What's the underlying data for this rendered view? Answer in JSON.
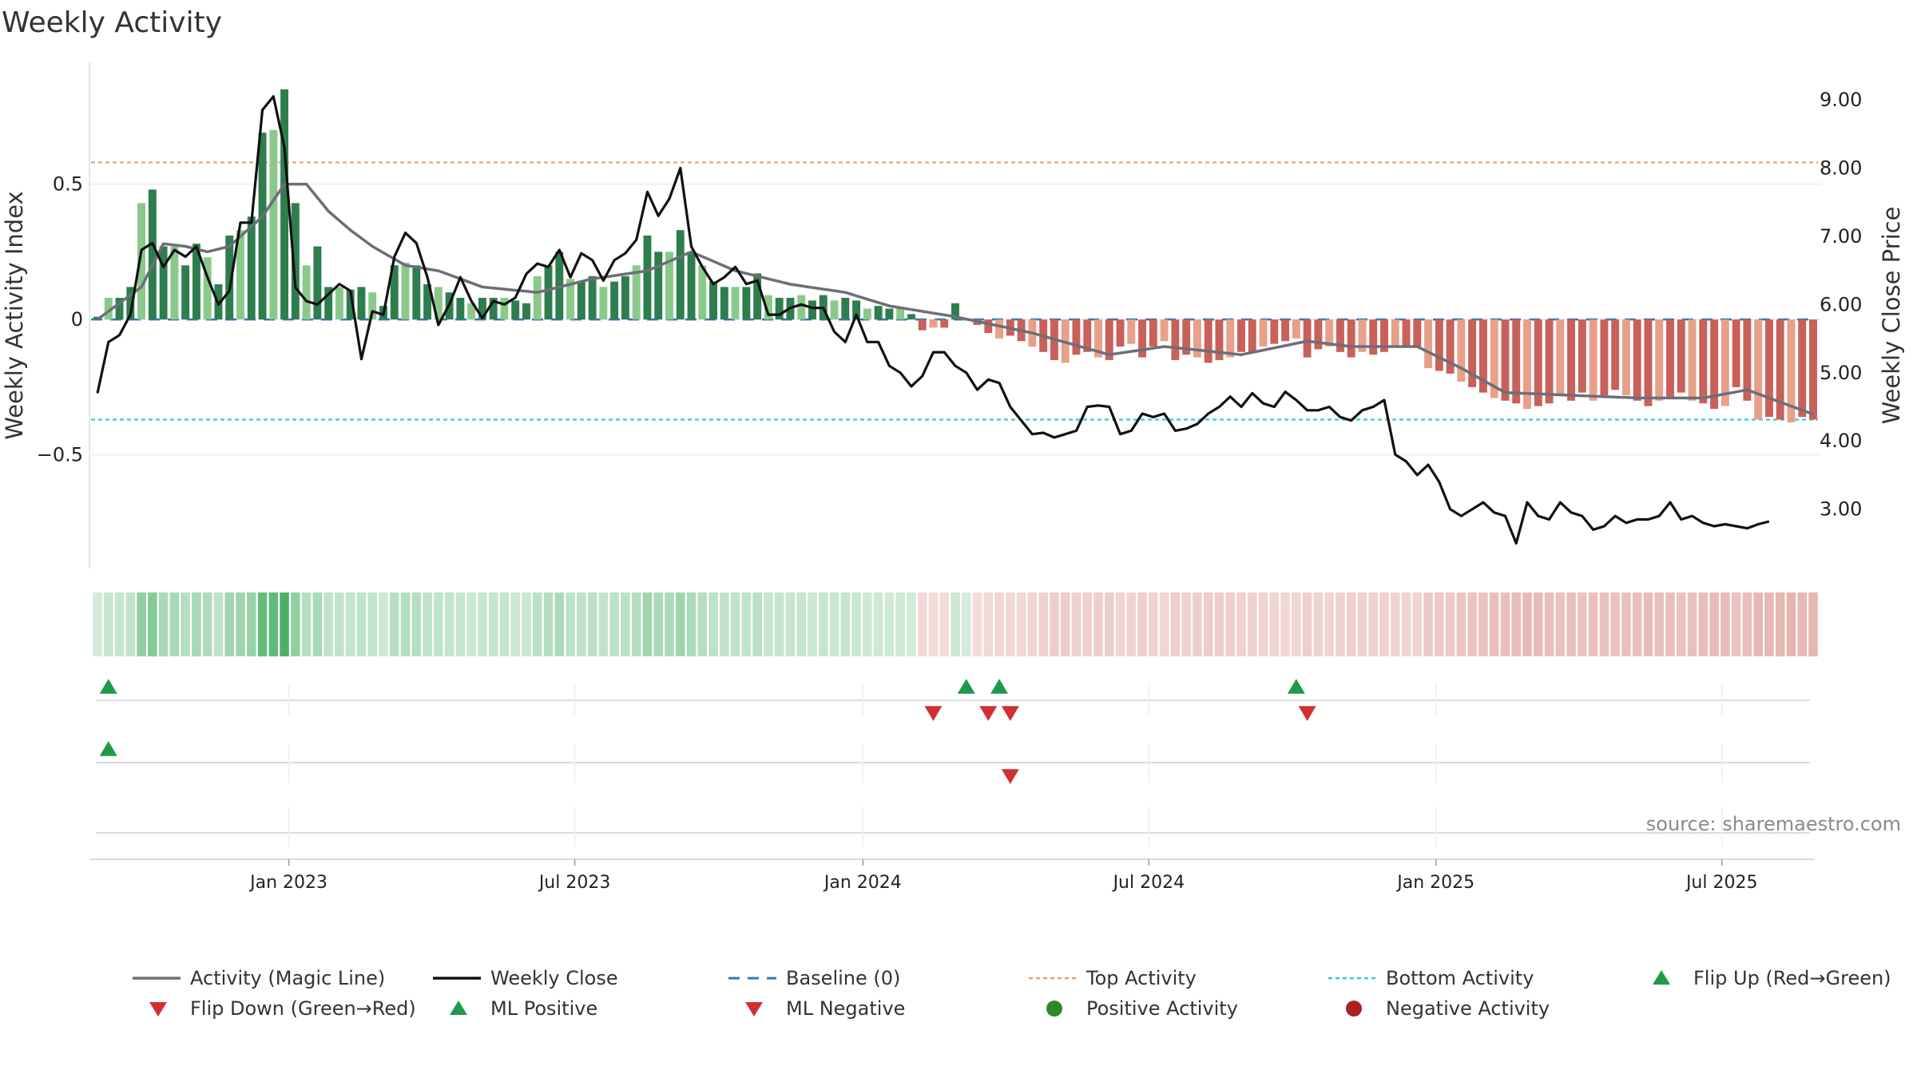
{
  "title": "Weekly Activity",
  "source": "source: sharemaestro.com",
  "colors": {
    "green_strong": "#2e7d4f",
    "green_light": "#8bc98a",
    "red_strong": "#c9605a",
    "red_light": "#e8a08a",
    "magic_line": "#6e6e78",
    "close_line": "#111111",
    "baseline": "#2b7bba",
    "top_line": "#e6a36a",
    "bottom_line": "#33cccc",
    "marker_up": "#1f9a4a",
    "marker_down": "#d13030",
    "pos_dot": "#2a8a2a",
    "neg_dot": "#aa2222"
  },
  "chart_data": {
    "type": "bar",
    "title": "Weekly Activity",
    "ylabel_left": "Weekly Activity Index",
    "ylabel_right": "Weekly Close Price",
    "y_left_range": [
      -0.92,
      0.95
    ],
    "y_left_ticks": [
      "0.5",
      "0",
      "−0.5"
    ],
    "y_left_tick_values": [
      0.5,
      0,
      -0.5
    ],
    "y_right_range": [
      2.13,
      9.55
    ],
    "y_right_ticks": [
      "9.00",
      "8.00",
      "7.00",
      "6.00",
      "5.00",
      "4.00",
      "3.00"
    ],
    "y_right_tick_values": [
      9,
      8,
      7,
      6,
      5,
      4,
      3
    ],
    "x_ticks": [
      "Jan 2023",
      "Jul 2023",
      "Jan 2024",
      "Jul 2024",
      "Jan 2025",
      "Jul 2025"
    ],
    "x_tick_weeks": [
      17.4,
      43.4,
      69.6,
      95.6,
      121.7,
      147.7
    ],
    "week_count": 157,
    "top_activity": 0.58,
    "bottom_activity": -0.37,
    "baseline": 0,
    "activity_anchors": [
      [
        0,
        0.01
      ],
      [
        1,
        0.08
      ],
      [
        2,
        0.08
      ],
      [
        3,
        0.12
      ],
      [
        4,
        0.43
      ],
      [
        5,
        0.48
      ],
      [
        6,
        0.27
      ],
      [
        7,
        0.27
      ],
      [
        8,
        0.2
      ],
      [
        9,
        0.28
      ],
      [
        10,
        0.23
      ],
      [
        11,
        0.13
      ],
      [
        12,
        0.31
      ],
      [
        13,
        0.33
      ],
      [
        14,
        0.38
      ],
      [
        15,
        0.69
      ],
      [
        16,
        0.7
      ],
      [
        17,
        0.85
      ],
      [
        18,
        0.43
      ],
      [
        19,
        0.2
      ],
      [
        20,
        0.27
      ],
      [
        21,
        0.12
      ],
      [
        22,
        0.12
      ],
      [
        23,
        0.11
      ],
      [
        24,
        0.12
      ],
      [
        25,
        0.1
      ],
      [
        26,
        0.05
      ],
      [
        27,
        0.2
      ],
      [
        28,
        0.21
      ],
      [
        29,
        0.2
      ],
      [
        30,
        0.13
      ],
      [
        31,
        0.12
      ],
      [
        32,
        0.1
      ],
      [
        33,
        0.08
      ],
      [
        34,
        0.06
      ],
      [
        35,
        0.08
      ],
      [
        36,
        0.08
      ],
      [
        37,
        0.08
      ],
      [
        38,
        0.07
      ],
      [
        39,
        0.06
      ],
      [
        40,
        0.16
      ],
      [
        41,
        0.2
      ],
      [
        42,
        0.25
      ],
      [
        43,
        0.15
      ],
      [
        44,
        0.14
      ],
      [
        45,
        0.16
      ],
      [
        46,
        0.12
      ],
      [
        47,
        0.14
      ],
      [
        48,
        0.16
      ],
      [
        49,
        0.2
      ],
      [
        50,
        0.31
      ],
      [
        51,
        0.25
      ],
      [
        52,
        0.25
      ],
      [
        53,
        0.33
      ],
      [
        54,
        0.25
      ],
      [
        55,
        0.2
      ],
      [
        56,
        0.14
      ],
      [
        57,
        0.12
      ],
      [
        58,
        0.12
      ],
      [
        59,
        0.12
      ],
      [
        60,
        0.17
      ],
      [
        61,
        0.09
      ],
      [
        62,
        0.08
      ],
      [
        63,
        0.08
      ],
      [
        64,
        0.09
      ],
      [
        65,
        0.07
      ],
      [
        66,
        0.09
      ],
      [
        67,
        0.07
      ],
      [
        68,
        0.08
      ],
      [
        69,
        0.07
      ],
      [
        70,
        0.04
      ],
      [
        71,
        0.05
      ],
      [
        72,
        0.04
      ],
      [
        73,
        0.04
      ],
      [
        74,
        0.02
      ],
      [
        75,
        -0.04
      ],
      [
        76,
        -0.03
      ],
      [
        77,
        -0.03
      ],
      [
        78,
        0.06
      ],
      [
        79,
        0.0
      ],
      [
        80,
        -0.02
      ],
      [
        81,
        -0.05
      ],
      [
        82,
        -0.07
      ],
      [
        83,
        -0.06
      ],
      [
        84,
        -0.08
      ],
      [
        85,
        -0.1
      ],
      [
        86,
        -0.12
      ],
      [
        87,
        -0.15
      ],
      [
        88,
        -0.16
      ],
      [
        89,
        -0.13
      ],
      [
        90,
        -0.12
      ],
      [
        91,
        -0.14
      ],
      [
        92,
        -0.15
      ],
      [
        93,
        -0.1
      ],
      [
        94,
        -0.09
      ],
      [
        95,
        -0.14
      ],
      [
        96,
        -0.1
      ],
      [
        97,
        -0.08
      ],
      [
        98,
        -0.15
      ],
      [
        99,
        -0.13
      ],
      [
        100,
        -0.14
      ],
      [
        101,
        -0.16
      ],
      [
        102,
        -0.15
      ],
      [
        103,
        -0.14
      ],
      [
        104,
        -0.12
      ],
      [
        105,
        -0.12
      ],
      [
        106,
        -0.1
      ],
      [
        107,
        -0.09
      ],
      [
        108,
        -0.08
      ],
      [
        109,
        -0.07
      ],
      [
        110,
        -0.14
      ],
      [
        111,
        -0.11
      ],
      [
        112,
        -0.1
      ],
      [
        113,
        -0.12
      ],
      [
        114,
        -0.14
      ],
      [
        115,
        -0.12
      ],
      [
        116,
        -0.13
      ],
      [
        117,
        -0.12
      ],
      [
        118,
        -0.1
      ],
      [
        119,
        -0.1
      ],
      [
        120,
        -0.1
      ],
      [
        121,
        -0.18
      ],
      [
        122,
        -0.19
      ],
      [
        123,
        -0.2
      ],
      [
        124,
        -0.23
      ],
      [
        125,
        -0.25
      ],
      [
        126,
        -0.27
      ],
      [
        127,
        -0.29
      ],
      [
        128,
        -0.3
      ],
      [
        129,
        -0.31
      ],
      [
        130,
        -0.33
      ],
      [
        131,
        -0.32
      ],
      [
        132,
        -0.31
      ],
      [
        133,
        -0.28
      ],
      [
        134,
        -0.3
      ],
      [
        135,
        -0.27
      ],
      [
        136,
        -0.3
      ],
      [
        137,
        -0.28
      ],
      [
        138,
        -0.26
      ],
      [
        139,
        -0.28
      ],
      [
        140,
        -0.3
      ],
      [
        141,
        -0.32
      ],
      [
        142,
        -0.3
      ],
      [
        143,
        -0.29
      ],
      [
        144,
        -0.27
      ],
      [
        145,
        -0.3
      ],
      [
        146,
        -0.31
      ],
      [
        147,
        -0.33
      ],
      [
        148,
        -0.32
      ],
      [
        149,
        -0.25
      ],
      [
        150,
        -0.3
      ],
      [
        151,
        -0.37
      ],
      [
        152,
        -0.36
      ],
      [
        153,
        -0.37
      ],
      [
        154,
        -0.38
      ],
      [
        155,
        -0.36
      ],
      [
        156,
        -0.37
      ]
    ],
    "magic_anchors": [
      [
        0,
        0.0
      ],
      [
        4,
        0.12
      ],
      [
        6,
        0.28
      ],
      [
        8,
        0.27
      ],
      [
        10,
        0.25
      ],
      [
        12,
        0.27
      ],
      [
        15,
        0.38
      ],
      [
        17,
        0.5
      ],
      [
        19,
        0.5
      ],
      [
        21,
        0.4
      ],
      [
        23,
        0.33
      ],
      [
        25,
        0.27
      ],
      [
        28,
        0.2
      ],
      [
        31,
        0.18
      ],
      [
        35,
        0.12
      ],
      [
        40,
        0.1
      ],
      [
        45,
        0.15
      ],
      [
        50,
        0.18
      ],
      [
        54,
        0.25
      ],
      [
        58,
        0.18
      ],
      [
        63,
        0.13
      ],
      [
        68,
        0.1
      ],
      [
        72,
        0.05
      ],
      [
        78,
        0.01
      ],
      [
        85,
        -0.05
      ],
      [
        92,
        -0.13
      ],
      [
        97,
        -0.1
      ],
      [
        104,
        -0.13
      ],
      [
        110,
        -0.08
      ],
      [
        114,
        -0.1
      ],
      [
        120,
        -0.1
      ],
      [
        124,
        -0.18
      ],
      [
        128,
        -0.27
      ],
      [
        134,
        -0.28
      ],
      [
        140,
        -0.29
      ],
      [
        146,
        -0.29
      ],
      [
        150,
        -0.26
      ],
      [
        156,
        -0.35
      ]
    ],
    "close_anchors": [
      [
        0,
        4.7
      ],
      [
        1,
        5.45
      ],
      [
        2,
        5.55
      ],
      [
        3,
        5.85
      ],
      [
        4,
        6.8
      ],
      [
        5,
        6.9
      ],
      [
        6,
        6.55
      ],
      [
        7,
        6.8
      ],
      [
        8,
        6.7
      ],
      [
        9,
        6.85
      ],
      [
        10,
        6.4
      ],
      [
        11,
        6.0
      ],
      [
        12,
        6.2
      ],
      [
        13,
        7.2
      ],
      [
        14,
        7.2
      ],
      [
        15,
        8.85
      ],
      [
        16,
        9.05
      ],
      [
        17,
        8.3
      ],
      [
        18,
        6.25
      ],
      [
        19,
        6.05
      ],
      [
        20,
        6.0
      ],
      [
        21,
        6.15
      ],
      [
        22,
        6.3
      ],
      [
        23,
        6.2
      ],
      [
        24,
        5.2
      ],
      [
        25,
        5.9
      ],
      [
        26,
        5.85
      ],
      [
        27,
        6.7
      ],
      [
        28,
        7.05
      ],
      [
        29,
        6.9
      ],
      [
        30,
        6.4
      ],
      [
        31,
        5.7
      ],
      [
        32,
        6.0
      ],
      [
        33,
        6.4
      ],
      [
        34,
        6.05
      ],
      [
        35,
        5.8
      ],
      [
        36,
        6.05
      ],
      [
        37,
        6.0
      ],
      [
        38,
        6.1
      ],
      [
        39,
        6.45
      ],
      [
        40,
        6.6
      ],
      [
        41,
        6.55
      ],
      [
        42,
        6.8
      ],
      [
        43,
        6.4
      ],
      [
        44,
        6.75
      ],
      [
        45,
        6.65
      ],
      [
        46,
        6.35
      ],
      [
        47,
        6.65
      ],
      [
        48,
        6.75
      ],
      [
        49,
        6.95
      ],
      [
        50,
        7.65
      ],
      [
        51,
        7.3
      ],
      [
        52,
        7.55
      ],
      [
        53,
        8.0
      ],
      [
        54,
        6.85
      ],
      [
        55,
        6.55
      ],
      [
        56,
        6.3
      ],
      [
        57,
        6.4
      ],
      [
        58,
        6.55
      ],
      [
        59,
        6.3
      ],
      [
        60,
        6.35
      ],
      [
        61,
        5.85
      ],
      [
        62,
        5.85
      ],
      [
        63,
        5.95
      ],
      [
        64,
        6.0
      ],
      [
        65,
        5.95
      ],
      [
        66,
        5.95
      ],
      [
        67,
        5.6
      ],
      [
        68,
        5.45
      ],
      [
        69,
        5.85
      ],
      [
        70,
        5.45
      ],
      [
        71,
        5.45
      ],
      [
        72,
        5.1
      ],
      [
        73,
        5.0
      ],
      [
        74,
        4.8
      ],
      [
        75,
        4.95
      ],
      [
        76,
        5.3
      ],
      [
        77,
        5.3
      ],
      [
        78,
        5.1
      ],
      [
        79,
        5.0
      ],
      [
        80,
        4.75
      ],
      [
        81,
        4.9
      ],
      [
        82,
        4.85
      ],
      [
        83,
        4.5
      ],
      [
        84,
        4.3
      ],
      [
        85,
        4.1
      ],
      [
        86,
        4.12
      ],
      [
        87,
        4.05
      ],
      [
        88,
        4.1
      ],
      [
        89,
        4.15
      ],
      [
        90,
        4.5
      ],
      [
        91,
        4.52
      ],
      [
        92,
        4.5
      ],
      [
        93,
        4.1
      ],
      [
        94,
        4.15
      ],
      [
        95,
        4.4
      ],
      [
        96,
        4.35
      ],
      [
        97,
        4.4
      ],
      [
        98,
        4.15
      ],
      [
        99,
        4.18
      ],
      [
        100,
        4.25
      ],
      [
        101,
        4.4
      ],
      [
        102,
        4.5
      ],
      [
        103,
        4.65
      ],
      [
        104,
        4.5
      ],
      [
        105,
        4.7
      ],
      [
        106,
        4.55
      ],
      [
        107,
        4.5
      ],
      [
        108,
        4.72
      ],
      [
        109,
        4.6
      ],
      [
        110,
        4.45
      ],
      [
        111,
        4.45
      ],
      [
        112,
        4.5
      ],
      [
        113,
        4.35
      ],
      [
        114,
        4.3
      ],
      [
        115,
        4.45
      ],
      [
        116,
        4.5
      ],
      [
        117,
        4.6
      ],
      [
        118,
        3.8
      ],
      [
        119,
        3.7
      ],
      [
        120,
        3.5
      ],
      [
        121,
        3.65
      ],
      [
        122,
        3.4
      ],
      [
        123,
        3.0
      ],
      [
        124,
        2.9
      ],
      [
        125,
        3.0
      ],
      [
        126,
        3.1
      ],
      [
        127,
        2.95
      ],
      [
        128,
        2.9
      ],
      [
        129,
        2.5
      ],
      [
        130,
        3.1
      ],
      [
        131,
        2.9
      ],
      [
        132,
        2.85
      ],
      [
        133,
        3.1
      ],
      [
        134,
        2.95
      ],
      [
        135,
        2.9
      ],
      [
        136,
        2.7
      ],
      [
        137,
        2.75
      ],
      [
        138,
        2.9
      ],
      [
        139,
        2.8
      ],
      [
        140,
        2.85
      ],
      [
        141,
        2.85
      ],
      [
        142,
        2.9
      ],
      [
        143,
        3.1
      ],
      [
        144,
        2.85
      ],
      [
        145,
        2.9
      ],
      [
        146,
        2.8
      ],
      [
        147,
        2.75
      ],
      [
        148,
        2.78
      ],
      [
        149,
        2.75
      ],
      [
        150,
        2.72
      ],
      [
        151,
        2.78
      ],
      [
        152,
        2.82
      ]
    ],
    "flip_up_weeks": [
      1,
      79,
      82,
      109
    ],
    "flip_down_weeks": [
      76,
      81,
      83,
      110
    ],
    "ml_positive_weeks": [
      1
    ],
    "ml_negative_weeks": [
      83
    ],
    "legend": [
      "Activity (Magic Line)",
      "Weekly Close",
      "Baseline (0)",
      "Top Activity",
      "Bottom Activity",
      "Flip Up (Red→Green)",
      "Flip Down (Green→Red)",
      "ML Positive",
      "ML Negative",
      "Positive Activity",
      "Negative Activity"
    ]
  }
}
